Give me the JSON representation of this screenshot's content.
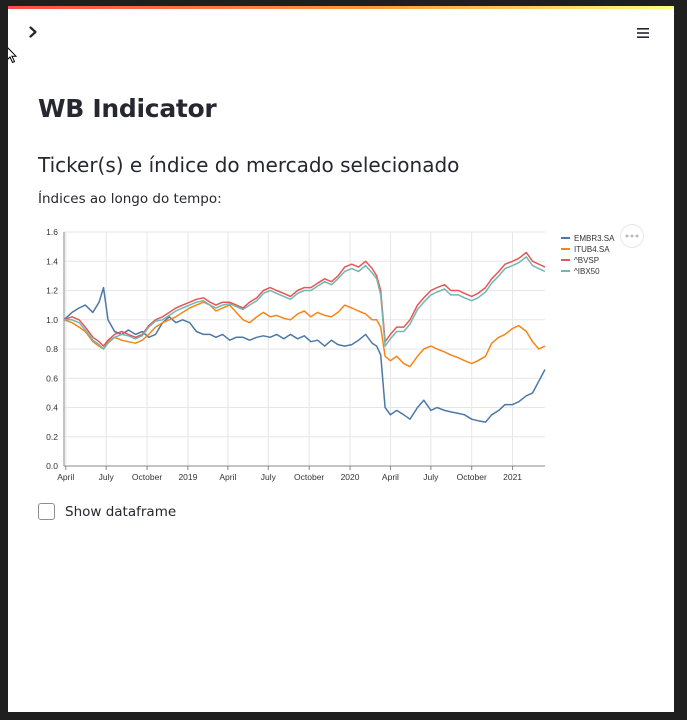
{
  "app": {
    "title": "WB Indicator",
    "subtitle": "Ticker(s) e índice do mercado selecionado",
    "caption": "Índices ao longo do tempo:",
    "show_dataframe_label": "Show dataframe",
    "show_dataframe_checked": false,
    "sidebar_toggle_icon": "chevron-right-icon",
    "menu_icon": "hamburger-menu-icon",
    "more_icon": "more-horizontal-icon",
    "accent_color": "#ff4b4b"
  },
  "chart_data": {
    "type": "line",
    "title": "",
    "xlabel": "",
    "ylabel": "",
    "ylim": [
      0.0,
      1.6
    ],
    "yticks": [
      "0.0",
      "0.2",
      "0.4",
      "0.6",
      "0.8",
      "1.0",
      "1.2",
      "1.4",
      "1.6"
    ],
    "xlim": [
      "2018-03-28",
      "2021-03-15"
    ],
    "xticks": [
      {
        "date": "2018-04-01",
        "label": "April"
      },
      {
        "date": "2018-07-01",
        "label": "July"
      },
      {
        "date": "2018-10-01",
        "label": "October"
      },
      {
        "date": "2019-01-01",
        "label": "2019"
      },
      {
        "date": "2019-04-01",
        "label": "April"
      },
      {
        "date": "2019-07-01",
        "label": "July"
      },
      {
        "date": "2019-10-01",
        "label": "October"
      },
      {
        "date": "2020-01-01",
        "label": "2020"
      },
      {
        "date": "2020-04-01",
        "label": "April"
      },
      {
        "date": "2020-07-01",
        "label": "July"
      },
      {
        "date": "2020-10-01",
        "label": "October"
      },
      {
        "date": "2021-01-01",
        "label": "2021"
      }
    ],
    "grid": true,
    "legend_position": "right",
    "x": [
      "2018-03-28",
      "2018-04-15",
      "2018-05-01",
      "2018-05-15",
      "2018-06-01",
      "2018-06-15",
      "2018-06-25",
      "2018-07-05",
      "2018-07-20",
      "2018-08-05",
      "2018-08-20",
      "2018-09-05",
      "2018-09-20",
      "2018-10-05",
      "2018-10-20",
      "2018-11-05",
      "2018-11-20",
      "2018-12-05",
      "2018-12-20",
      "2019-01-05",
      "2019-01-20",
      "2019-02-05",
      "2019-02-20",
      "2019-03-05",
      "2019-03-20",
      "2019-04-05",
      "2019-04-20",
      "2019-05-05",
      "2019-05-20",
      "2019-06-05",
      "2019-06-20",
      "2019-07-05",
      "2019-07-20",
      "2019-08-05",
      "2019-08-20",
      "2019-09-05",
      "2019-09-20",
      "2019-10-05",
      "2019-10-20",
      "2019-11-05",
      "2019-11-20",
      "2019-12-05",
      "2019-12-20",
      "2020-01-05",
      "2020-01-20",
      "2020-02-05",
      "2020-02-20",
      "2020-03-01",
      "2020-03-10",
      "2020-03-20",
      "2020-04-01",
      "2020-04-15",
      "2020-05-01",
      "2020-05-15",
      "2020-06-01",
      "2020-06-15",
      "2020-07-01",
      "2020-07-15",
      "2020-08-01",
      "2020-08-15",
      "2020-09-01",
      "2020-09-15",
      "2020-10-01",
      "2020-10-15",
      "2020-11-01",
      "2020-11-15",
      "2020-12-01",
      "2020-12-15",
      "2021-01-01",
      "2021-01-15",
      "2021-02-01",
      "2021-02-15",
      "2021-03-01",
      "2021-03-15"
    ],
    "series": [
      {
        "name": "EMBR3.SA",
        "color": "#4c78a8",
        "values": [
          1.0,
          1.05,
          1.08,
          1.1,
          1.05,
          1.12,
          1.22,
          1.0,
          0.92,
          0.9,
          0.93,
          0.9,
          0.92,
          0.88,
          0.9,
          0.98,
          1.02,
          0.98,
          1.0,
          0.98,
          0.92,
          0.9,
          0.9,
          0.88,
          0.9,
          0.86,
          0.88,
          0.88,
          0.86,
          0.88,
          0.89,
          0.88,
          0.9,
          0.87,
          0.9,
          0.87,
          0.89,
          0.85,
          0.86,
          0.82,
          0.86,
          0.83,
          0.82,
          0.83,
          0.86,
          0.9,
          0.84,
          0.82,
          0.76,
          0.4,
          0.35,
          0.38,
          0.35,
          0.32,
          0.4,
          0.45,
          0.38,
          0.4,
          0.38,
          0.37,
          0.36,
          0.35,
          0.32,
          0.31,
          0.3,
          0.35,
          0.38,
          0.42,
          0.42,
          0.44,
          0.48,
          0.5,
          0.58,
          0.66
        ]
      },
      {
        "name": "ITUB4.SA",
        "color": "#f58518",
        "values": [
          1.0,
          0.98,
          0.95,
          0.92,
          0.85,
          0.82,
          0.8,
          0.85,
          0.88,
          0.86,
          0.85,
          0.84,
          0.86,
          0.9,
          0.95,
          0.98,
          1.0,
          1.02,
          1.05,
          1.08,
          1.1,
          1.12,
          1.1,
          1.06,
          1.08,
          1.1,
          1.05,
          1.0,
          0.98,
          1.02,
          1.05,
          1.02,
          1.03,
          1.01,
          1.0,
          1.04,
          1.06,
          1.02,
          1.05,
          1.03,
          1.02,
          1.05,
          1.1,
          1.08,
          1.06,
          1.04,
          1.0,
          1.0,
          0.95,
          0.75,
          0.72,
          0.75,
          0.7,
          0.68,
          0.75,
          0.8,
          0.82,
          0.8,
          0.78,
          0.76,
          0.74,
          0.72,
          0.7,
          0.72,
          0.75,
          0.84,
          0.88,
          0.9,
          0.94,
          0.96,
          0.92,
          0.85,
          0.8,
          0.82
        ]
      },
      {
        "name": "^BVSP",
        "color": "#e45756",
        "values": [
          1.0,
          1.02,
          1.0,
          0.95,
          0.88,
          0.85,
          0.82,
          0.86,
          0.9,
          0.92,
          0.9,
          0.88,
          0.9,
          0.96,
          1.0,
          1.02,
          1.05,
          1.08,
          1.1,
          1.12,
          1.14,
          1.15,
          1.12,
          1.1,
          1.12,
          1.12,
          1.1,
          1.08,
          1.12,
          1.15,
          1.2,
          1.22,
          1.2,
          1.18,
          1.16,
          1.2,
          1.22,
          1.22,
          1.25,
          1.28,
          1.26,
          1.3,
          1.36,
          1.38,
          1.36,
          1.4,
          1.35,
          1.3,
          1.2,
          0.85,
          0.9,
          0.95,
          0.95,
          1.0,
          1.1,
          1.15,
          1.2,
          1.22,
          1.24,
          1.2,
          1.2,
          1.18,
          1.16,
          1.18,
          1.22,
          1.28,
          1.33,
          1.38,
          1.4,
          1.42,
          1.46,
          1.4,
          1.38,
          1.36
        ]
      },
      {
        "name": "^IBX50",
        "color": "#72b7b2",
        "values": [
          1.0,
          1.0,
          0.98,
          0.93,
          0.86,
          0.83,
          0.8,
          0.84,
          0.88,
          0.9,
          0.89,
          0.87,
          0.89,
          0.95,
          0.99,
          1.0,
          1.03,
          1.06,
          1.08,
          1.1,
          1.12,
          1.13,
          1.1,
          1.08,
          1.1,
          1.11,
          1.09,
          1.07,
          1.1,
          1.13,
          1.18,
          1.2,
          1.18,
          1.16,
          1.14,
          1.18,
          1.2,
          1.2,
          1.23,
          1.26,
          1.24,
          1.28,
          1.33,
          1.35,
          1.33,
          1.37,
          1.32,
          1.28,
          1.17,
          0.82,
          0.87,
          0.92,
          0.92,
          0.97,
          1.07,
          1.12,
          1.17,
          1.19,
          1.21,
          1.17,
          1.17,
          1.15,
          1.13,
          1.15,
          1.19,
          1.25,
          1.3,
          1.35,
          1.37,
          1.39,
          1.43,
          1.37,
          1.35,
          1.33
        ]
      }
    ]
  }
}
